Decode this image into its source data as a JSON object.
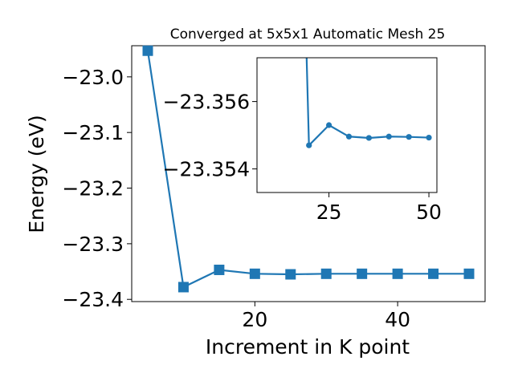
{
  "chart_data": [
    {
      "type": "line",
      "title": "Converged at 5x5x1 Automatic Mesh 25",
      "xlabel": "Increment in K point",
      "ylabel": "Energy (eV)",
      "xlim": [
        2.75,
        52.25
      ],
      "ylim": [
        -23.404,
        -22.944
      ],
      "xticks": [
        20,
        40
      ],
      "xtick_labels": [
        "20",
        "40"
      ],
      "yticks": [
        -23.0,
        -23.1,
        -23.2,
        -23.3,
        -23.4
      ],
      "ytick_labels": [
        "−23.0",
        "−23.1",
        "−23.2",
        "−23.3",
        "−23.4"
      ],
      "grid": false,
      "marker": "square",
      "color": "#1f77b4",
      "series": [
        {
          "x": [
            5,
            10,
            15,
            20,
            25,
            30,
            35,
            40,
            45,
            50
          ],
          "y": [
            -22.953,
            -23.378,
            -23.347,
            -23.354,
            -23.355,
            -23.354,
            -23.354,
            -23.354,
            -23.354,
            -23.354
          ]
        }
      ]
    },
    {
      "type": "line",
      "inset": true,
      "xlim": [
        7.0,
        52.0
      ],
      "ylim": [
        -23.3533,
        -23.3573
      ],
      "xticks": [
        25,
        50
      ],
      "xtick_labels": [
        "25",
        "50"
      ],
      "yticks": [
        -23.356,
        -23.354
      ],
      "ytick_labels": [
        "−23.356",
        "−23.354"
      ],
      "grid": false,
      "marker": "circle",
      "color": "#1f77b4",
      "series": [
        {
          "x": [
            20,
            25,
            30,
            35,
            40,
            45,
            50
          ],
          "y": [
            -23.3547,
            -23.3553,
            -23.35496,
            -23.35492,
            -23.35496,
            -23.35495,
            -23.35493
          ]
        }
      ]
    }
  ]
}
